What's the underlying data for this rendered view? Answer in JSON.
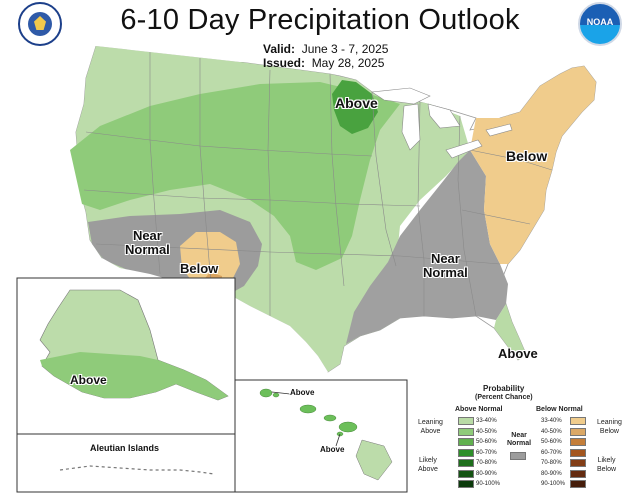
{
  "title": "6-10 Day Precipitation Outlook",
  "valid_label": "Valid:",
  "valid_value": "June 3 - 7, 2025",
  "issued_label": "Issued:",
  "issued_value": "May 28, 2025",
  "logos": {
    "left": "doc-seal-icon",
    "right": "noaa-logo-icon",
    "noaa_text": "NOAA"
  },
  "labels": {
    "above_north": "Above",
    "below_east": "Below",
    "near_normal_west": "Near\nNormal",
    "below_southwest": "Below",
    "near_normal_southeast": "Near\nNormal",
    "above_florida": "Above",
    "above_alaska": "Above",
    "above_hawaii_1": "Above",
    "above_hawaii_2": "Above",
    "aleutian": "Aleutian Islands"
  },
  "legend": {
    "title1": "Probability",
    "title2": "(Percent Chance)",
    "above_header": "Above Normal",
    "below_header": "Below Normal",
    "leaning_above": "Leaning\nAbove",
    "likely_above": "Likely\nAbove",
    "leaning_below": "Leaning\nBelow",
    "likely_below": "Likely\nBelow",
    "near_normal": "Near\nNormal",
    "ranges": [
      "33-40%",
      "40-50%",
      "50-60%",
      "60-70%",
      "70-80%",
      "80-90%",
      "90-100%"
    ],
    "above_colors": [
      "#b9dba6",
      "#8fcb7a",
      "#61b04f",
      "#2e8f2a",
      "#1e6f1c",
      "#145313",
      "#0b3a0b"
    ],
    "below_colors": [
      "#f0cc8c",
      "#dba866",
      "#c47e3a",
      "#a3561f",
      "#823d16",
      "#642b10",
      "#451d0a"
    ],
    "near_normal_color": "#9c9c9c"
  }
}
